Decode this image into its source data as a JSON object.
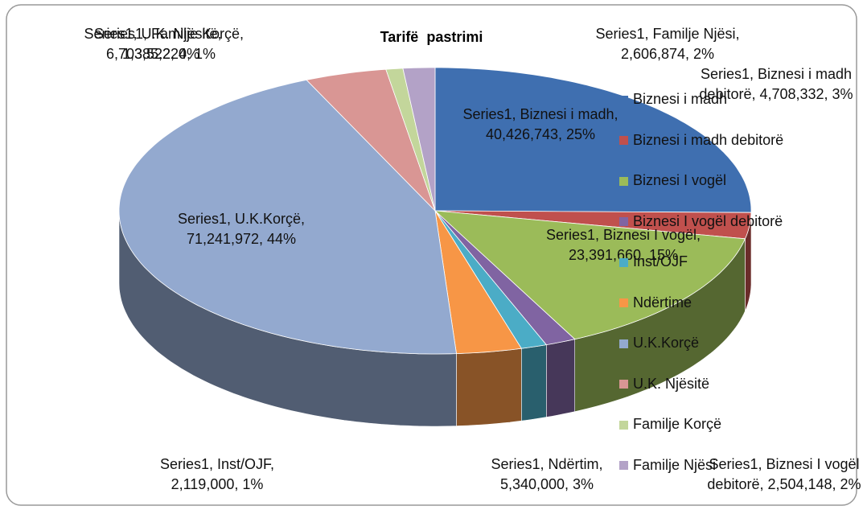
{
  "chart_data": {
    "type": "pie3d",
    "title": "Tarifë  pastrimi",
    "categories": [
      "Biznesi i madh",
      "Biznesi i madh debitorë",
      "Biznesi I vogël",
      "Biznesi I vogël debitorë",
      "Inst/OJF",
      "Ndërtime",
      "U.K.Korçë",
      "U.K. Njësitë",
      "Familje Korçë",
      "Familje Njësi"
    ],
    "series": [
      {
        "name": "Series1",
        "values": [
          40426743,
          4708332,
          23391660,
          2504148,
          2119000,
          5340000,
          71241972,
          6703522,
          1385220,
          2606874
        ],
        "colors": [
          "#3f6fb0",
          "#c0504d",
          "#9bbb59",
          "#8064a2",
          "#4bacc6",
          "#f79646",
          "#93a9cf",
          "#d99694",
          "#c3d69b",
          "#b3a2c7"
        ],
        "data_labels": [
          "Series1, Biznesi i madh, 40,426,743, 25%",
          "Series1, Biznesi i madh debitorë, 4,708,332, 3%",
          "Series1, Biznesi I vogël, 23,391,660, 15%",
          "Series1, Biznesi I vogël debitorë, 2,504,148, 2%",
          "Series1, Inst/OJF, 2,119,000, 1%",
          "Series1, Ndërtim, 5,340,000, 3%",
          "Series1, U.K.Korçë, 71,241,972, 44%",
          "Series1, U.K. Njësitë, 6,703,522, 4%",
          "Series1, Familje Korçë, 1,385,220, 1%",
          "Series1, Familje Njësi, 2,606,874, 2%"
        ]
      }
    ],
    "legend": "right"
  }
}
